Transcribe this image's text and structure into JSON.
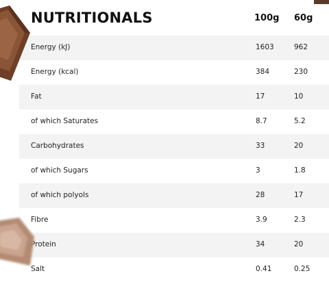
{
  "table": {
    "title": "NUTRITIONALS",
    "col_100g": "100g",
    "col_60g": "60g",
    "rows": [
      {
        "label": "Energy (kJ)",
        "per100": "1603",
        "per60": "962"
      },
      {
        "label": "Energy (kcal)",
        "per100": "384",
        "per60": "230"
      },
      {
        "label": "Fat",
        "per100": "17",
        "per60": "10"
      },
      {
        "label": "of which Saturates",
        "per100": "8.7",
        "per60": "5.2"
      },
      {
        "label": "Carbohydrates",
        "per100": "33",
        "per60": "20"
      },
      {
        "label": "of which Sugars",
        "per100": "3",
        "per60": "1.8"
      },
      {
        "label": "of which polyols",
        "per100": "28",
        "per60": "17"
      },
      {
        "label": "Fibre",
        "per100": "3.9",
        "per60": "2.3"
      },
      {
        "label": "Protein",
        "per100": "34",
        "per60": "20"
      },
      {
        "label": "Salt",
        "per100": "0.41",
        "per60": "0.25"
      }
    ]
  },
  "decor": {
    "chocolate_color": "#7a4a2f",
    "row_shade_color": "#f3f3f3"
  }
}
